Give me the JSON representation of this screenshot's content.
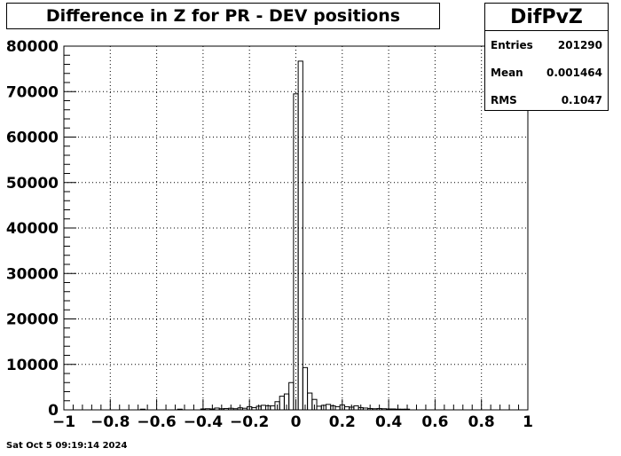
{
  "chart_data": {
    "type": "bar",
    "title": "Difference in Z for PR - DEV positions",
    "xlabel": "",
    "ylabel": "",
    "xlim": [
      -1,
      1
    ],
    "ylim": [
      0,
      80000
    ],
    "grid": true,
    "xticks": [
      "−1",
      "−0.8",
      "−0.6",
      "−0.4",
      "−0.2",
      "0",
      "0.2",
      "0.4",
      "0.6",
      "0.8",
      "1"
    ],
    "yticks": [
      "0",
      "10000",
      "20000",
      "30000",
      "40000",
      "50000",
      "60000",
      "70000",
      "80000"
    ],
    "bin_width": 0.02,
    "bins": [
      {
        "x": -0.66,
        "y": 150
      },
      {
        "x": -0.5,
        "y": 150
      },
      {
        "x": -0.4,
        "y": 200
      },
      {
        "x": -0.38,
        "y": 250
      },
      {
        "x": -0.36,
        "y": 200
      },
      {
        "x": -0.34,
        "y": 400
      },
      {
        "x": -0.32,
        "y": 250
      },
      {
        "x": -0.3,
        "y": 300
      },
      {
        "x": -0.28,
        "y": 350
      },
      {
        "x": -0.26,
        "y": 250
      },
      {
        "x": -0.24,
        "y": 450
      },
      {
        "x": -0.22,
        "y": 350
      },
      {
        "x": -0.2,
        "y": 700
      },
      {
        "x": -0.18,
        "y": 500
      },
      {
        "x": -0.16,
        "y": 800
      },
      {
        "x": -0.14,
        "y": 1000
      },
      {
        "x": -0.12,
        "y": 900
      },
      {
        "x": -0.1,
        "y": 900
      },
      {
        "x": -0.08,
        "y": 1800
      },
      {
        "x": -0.06,
        "y": 3000
      },
      {
        "x": -0.04,
        "y": 3500
      },
      {
        "x": -0.02,
        "y": 6000
      },
      {
        "x": 0.0,
        "y": 69500
      },
      {
        "x": 0.02,
        "y": 76700
      },
      {
        "x": 0.04,
        "y": 9300
      },
      {
        "x": 0.06,
        "y": 3700
      },
      {
        "x": 0.08,
        "y": 2300
      },
      {
        "x": 0.1,
        "y": 800
      },
      {
        "x": 0.12,
        "y": 1000
      },
      {
        "x": 0.14,
        "y": 1200
      },
      {
        "x": 0.16,
        "y": 900
      },
      {
        "x": 0.18,
        "y": 700
      },
      {
        "x": 0.2,
        "y": 1100
      },
      {
        "x": 0.22,
        "y": 700
      },
      {
        "x": 0.24,
        "y": 600
      },
      {
        "x": 0.26,
        "y": 900
      },
      {
        "x": 0.28,
        "y": 500
      },
      {
        "x": 0.3,
        "y": 400
      },
      {
        "x": 0.32,
        "y": 300
      },
      {
        "x": 0.34,
        "y": 250
      },
      {
        "x": 0.36,
        "y": 300
      },
      {
        "x": 0.38,
        "y": 250
      },
      {
        "x": 0.4,
        "y": 200
      },
      {
        "x": 0.42,
        "y": 200
      },
      {
        "x": 0.44,
        "y": 150
      },
      {
        "x": 0.46,
        "y": 150
      },
      {
        "x": 0.48,
        "y": 150
      }
    ]
  },
  "stats": {
    "name": "DifPvZ",
    "rows": [
      {
        "key": "Entries",
        "value": "201290"
      },
      {
        "key": "Mean",
        "value": "0.001464"
      },
      {
        "key": "RMS",
        "value": "0.1047"
      }
    ]
  },
  "footer": "Sat Oct  5 09:19:14 2024"
}
